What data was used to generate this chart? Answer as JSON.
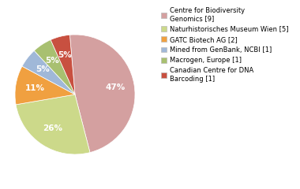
{
  "labels": [
    "Centre for Biodiversity\nGenomics [9]",
    "Naturhistorisches Museum Wien [5]",
    "GATC Biotech AG [2]",
    "Mined from GenBank, NCBI [1]",
    "Macrogen, Europe [1]",
    "Canadian Centre for DNA\nBarcoding [1]"
  ],
  "values": [
    9,
    5,
    2,
    1,
    1,
    1
  ],
  "colors": [
    "#d4a0a0",
    "#ccd98a",
    "#f0a040",
    "#a0b8d8",
    "#a8c070",
    "#c85040"
  ],
  "startangle": 95,
  "background_color": "#ffffff",
  "fontsize": 7.5
}
